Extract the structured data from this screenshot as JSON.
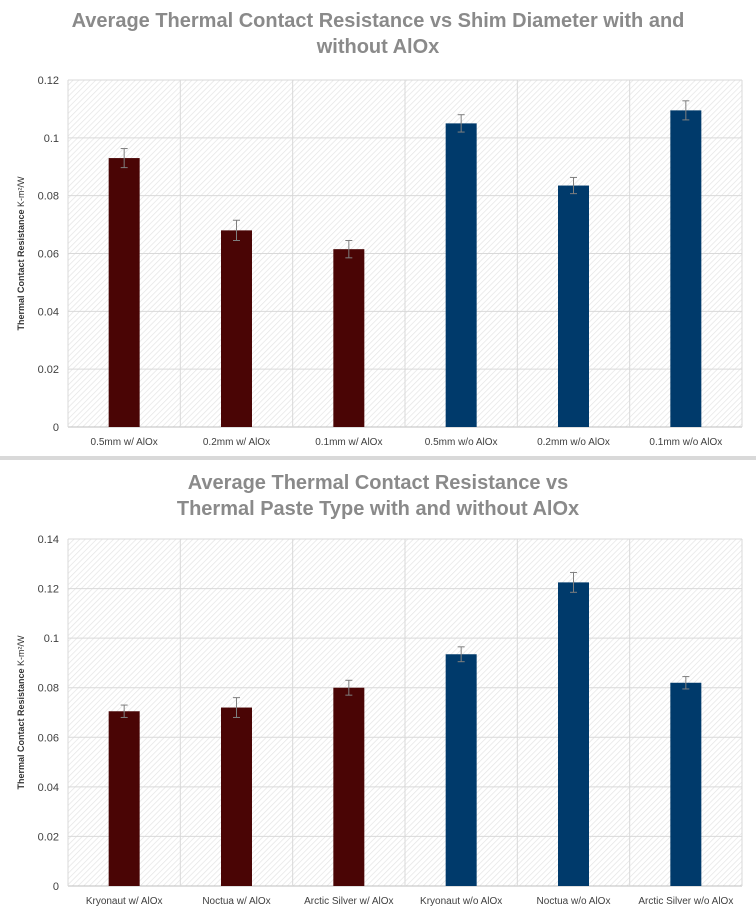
{
  "chart_data": [
    {
      "type": "bar",
      "title_lines": [
        "Average Thermal Contact Resistance vs Shim Diameter with and",
        "without AlOx"
      ],
      "ylabel": "Thermal Contact Resistance",
      "ylabel_unit": "K-m²/W",
      "ylim": [
        0,
        0.12
      ],
      "yticks": [
        0,
        0.02,
        0.04,
        0.06,
        0.08,
        0.1,
        0.12
      ],
      "ytick_labels": [
        "0",
        "0.02",
        "0.04",
        "0.06",
        "0.08",
        "0.1",
        "0.12"
      ],
      "categories": [
        "0.5mm w/ AlOx",
        "0.2mm w/ AlOx",
        "0.1mm w/ AlOx",
        "0.5mm w/o AlOx",
        "0.2mm w/o AlOx",
        "0.1mm w/o AlOx"
      ],
      "values": [
        0.093,
        0.068,
        0.0615,
        0.105,
        0.0835,
        0.1095
      ],
      "errors": [
        0.0033,
        0.0035,
        0.003,
        0.003,
        0.0028,
        0.0033
      ],
      "bar_colors": [
        "#4a0505",
        "#4a0505",
        "#4a0505",
        "#003a6b",
        "#003a6b",
        "#003a6b"
      ],
      "grid": true,
      "legend": "none"
    },
    {
      "type": "bar",
      "title_lines": [
        "Average Thermal Contact Resistance vs",
        "Thermal Paste Type with and without AlOx"
      ],
      "ylabel": "Thermal Contact Resistance",
      "ylabel_unit": "K-m²/W",
      "ylim": [
        0,
        0.14
      ],
      "yticks": [
        0,
        0.02,
        0.04,
        0.06,
        0.08,
        0.1,
        0.12,
        0.14
      ],
      "ytick_labels": [
        "0",
        "0.02",
        "0.04",
        "0.06",
        "0.08",
        "0.1",
        "0.12",
        "0.14"
      ],
      "categories": [
        "Kryonaut w/ AlOx",
        "Noctua w/ AlOx",
        "Arctic Silver w/ AlOx",
        "Kryonaut w/o AlOx",
        "Noctua w/o AlOx",
        "Arctic Silver w/o AlOx"
      ],
      "values": [
        0.0705,
        0.072,
        0.08,
        0.0935,
        0.1225,
        0.082
      ],
      "errors": [
        0.0025,
        0.004,
        0.003,
        0.003,
        0.004,
        0.0025
      ],
      "bar_colors": [
        "#4a0505",
        "#4a0505",
        "#4a0505",
        "#003a6b",
        "#003a6b",
        "#003a6b"
      ],
      "grid": true,
      "legend": "none"
    }
  ]
}
